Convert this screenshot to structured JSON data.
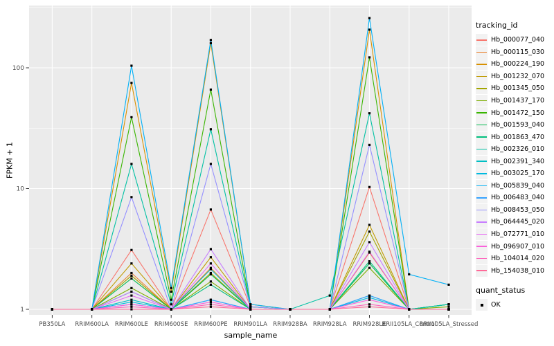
{
  "chart_data": {
    "type": "line",
    "title": "",
    "xlabel": "sample_name",
    "ylabel": "FPKM + 1",
    "y_scale": "log10",
    "y_ticks": [
      1,
      10,
      100
    ],
    "y_tick_labels": [
      "1",
      "10",
      "100"
    ],
    "y_minor_ticks": [
      3.162,
      31.62,
      316.2
    ],
    "ylim": [
      1,
      330
    ],
    "grid": true,
    "legend_position": "right",
    "legend_title": "tracking_id",
    "point_marker": "black-square",
    "quant_legend": {
      "title": "quant_status",
      "items": [
        "OK"
      ]
    },
    "categories": [
      "PB350LA",
      "RRIM600LA",
      "RRIM600LE",
      "RRIM600SE",
      "RRIM600PE",
      "RRIM901LA",
      "RRIM928BA",
      "RRIM928LA",
      "RRIM928LE",
      "RRII105LA_Control",
      "RRII105LA_Stressed"
    ],
    "series": [
      {
        "name": "Hb_000077_040",
        "color": "#F8766D",
        "values": [
          1,
          1,
          3.1,
          1,
          6.7,
          1.05,
          1,
          1,
          10.3,
          1,
          1
        ]
      },
      {
        "name": "Hb_000115_030",
        "color": "#EA8331",
        "values": [
          1,
          1,
          2.0,
          1,
          2.2,
          1,
          1,
          1,
          2.95,
          1,
          1
        ]
      },
      {
        "name": "Hb_000224_190",
        "color": "#D89000",
        "values": [
          1,
          1,
          75,
          1.4,
          160,
          1.1,
          1,
          1,
          207,
          1,
          1
        ]
      },
      {
        "name": "Hb_001232_070",
        "color": "#C09B00",
        "values": [
          1,
          1,
          2.4,
          1,
          2.7,
          1,
          1,
          1,
          5.0,
          1,
          1
        ]
      },
      {
        "name": "Hb_001345_050",
        "color": "#A3A500",
        "values": [
          1,
          1,
          1.9,
          1,
          2.0,
          1,
          1,
          1,
          4.4,
          1,
          1
        ]
      },
      {
        "name": "Hb_001437_170",
        "color": "#7CAE00",
        "values": [
          1,
          1,
          1.5,
          1,
          1.7,
          1,
          1,
          1,
          2.2,
          1,
          1.05
        ]
      },
      {
        "name": "Hb_001472_150",
        "color": "#39B600",
        "values": [
          1,
          1,
          39,
          1.2,
          66,
          1.05,
          1,
          1,
          122,
          1,
          1.1
        ]
      },
      {
        "name": "Hb_001593_040",
        "color": "#00BB4E",
        "values": [
          1,
          1,
          1.8,
          1,
          1.95,
          1,
          1,
          1,
          2.4,
          1,
          1.1
        ]
      },
      {
        "name": "Hb_001863_470",
        "color": "#00BF7D",
        "values": [
          1,
          1,
          1.4,
          1,
          1.6,
          1,
          1,
          1,
          2.5,
          1,
          1.1
        ]
      },
      {
        "name": "Hb_002326_010",
        "color": "#00C1A3",
        "values": [
          1,
          1,
          16,
          1.1,
          31,
          1.05,
          1,
          1.3,
          42,
          1,
          1.1
        ]
      },
      {
        "name": "Hb_002391_340",
        "color": "#00BFC4",
        "values": [
          1,
          1,
          1.2,
          1,
          2.15,
          1,
          1,
          1,
          1.3,
          1,
          1
        ]
      },
      {
        "name": "Hb_003025_170",
        "color": "#00BAE0",
        "values": [
          1,
          1,
          1.15,
          1,
          1.2,
          1,
          1,
          1,
          1.25,
          1,
          1
        ]
      },
      {
        "name": "Hb_005839_040",
        "color": "#00B0F6",
        "values": [
          1,
          1,
          104,
          1.5,
          170,
          1.1,
          1,
          1,
          258,
          1.95,
          1.6
        ]
      },
      {
        "name": "Hb_006483_040",
        "color": "#35A2FF",
        "values": [
          1,
          1,
          1.1,
          1,
          1.2,
          1,
          1,
          1,
          1.3,
          1,
          1
        ]
      },
      {
        "name": "Hb_008453_050",
        "color": "#9590FF",
        "values": [
          1,
          1,
          8.5,
          1,
          16,
          1.05,
          1,
          1,
          23,
          1,
          1
        ]
      },
      {
        "name": "Hb_064445_020",
        "color": "#C77CFF",
        "values": [
          1,
          1,
          1.4,
          1,
          3.15,
          1,
          1,
          1,
          3.6,
          1,
          1
        ]
      },
      {
        "name": "Hb_072771_010",
        "color": "#E76BF3",
        "values": [
          1,
          1,
          1.3,
          1,
          2.4,
          1,
          1,
          1,
          3.0,
          1,
          1
        ]
      },
      {
        "name": "Hb_096907_010",
        "color": "#FA62DB",
        "values": [
          1,
          1,
          1.1,
          1,
          1.15,
          1,
          1,
          1,
          1.2,
          1,
          1
        ]
      },
      {
        "name": "Hb_104014_020",
        "color": "#FF62BC",
        "values": [
          1,
          1,
          1.05,
          1,
          1.1,
          1,
          1,
          1,
          1.1,
          1,
          1
        ]
      },
      {
        "name": "Hb_154038_010",
        "color": "#FF6A98",
        "values": [
          1,
          1,
          1.0,
          1,
          1.05,
          1,
          1,
          1,
          1.05,
          1,
          1
        ]
      }
    ]
  },
  "colors": {
    "panel_bg": "#EBEBEB",
    "grid": "#FFFFFF",
    "axis_text": "#4D4D4D",
    "tick_mark": "#333333",
    "title_text": "#000000",
    "point": "#000000",
    "legend_key_bg": "#F2F2F2",
    "background": "#FFFFFF"
  }
}
